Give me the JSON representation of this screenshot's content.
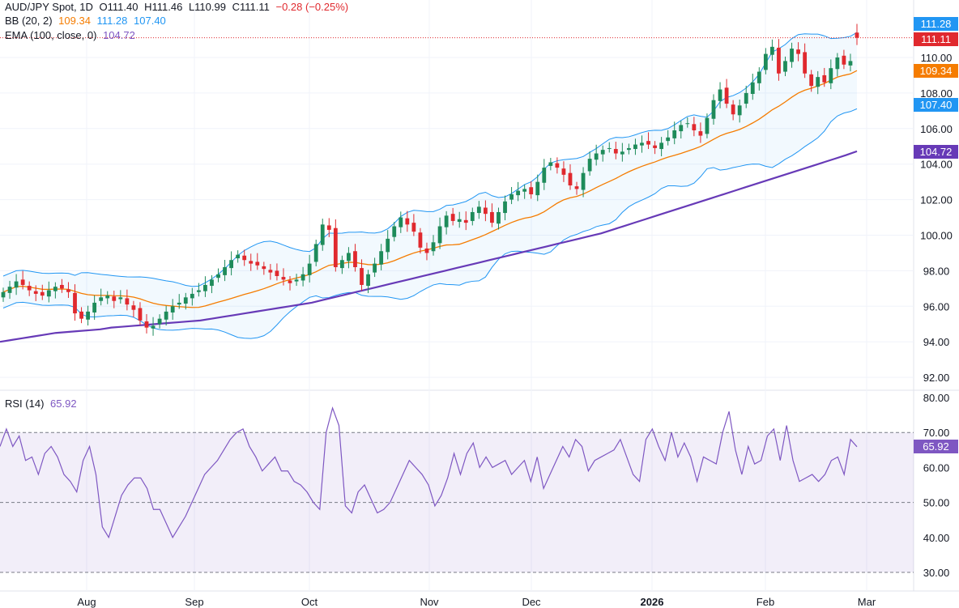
{
  "header": {
    "symbol": "AUD/JPY Spot, 1D",
    "open": "O111.40",
    "high": "H111.46",
    "low": "L110.99",
    "close": "C111.11",
    "change": "−0.28 (−0.25%)",
    "bb_label": "BB (20, 2)",
    "bb_mid": "109.34",
    "bb_up": "111.28",
    "bb_low": "107.40",
    "ema_label": "EMA (100, close, 0)",
    "ema_val": "104.72",
    "rsi_label": "RSI (14)",
    "rsi_val": "65.92"
  },
  "price_tags": {
    "bb_upper": "111.28",
    "last": "111.11",
    "bb_mid": "109.34",
    "bb_lower": "107.40",
    "ema": "104.72",
    "rsi": "65.92"
  },
  "colors": {
    "up": "#26a69a",
    "down": "#ef5350",
    "bb_mid": "#f57c00",
    "bb_band": "#2196f3",
    "ema": "#673ab7",
    "rsi": "#7e57c2"
  },
  "chart_data": [
    {
      "type": "candlestick",
      "title": "AUD/JPY Spot, 1D",
      "y_ticks": [
        "110.00",
        "108.00",
        "106.00",
        "104.00",
        "102.00",
        "100.00",
        "98.00",
        "96.00",
        "94.00",
        "92.00"
      ],
      "ylim": [
        91.2,
        113.0
      ],
      "x_ticks": [
        "Aug",
        "Sep",
        "Oct",
        "Nov",
        "Dec",
        "2026",
        "Feb",
        "Mar"
      ],
      "close": [
        96.8,
        97.1,
        97.4,
        97.2,
        96.9,
        96.7,
        96.6,
        96.9,
        97.1,
        97.0,
        96.8,
        95.6,
        95.3,
        95.7,
        96.2,
        96.5,
        96.6,
        96.3,
        96.5,
        96.1,
        95.8,
        95.2,
        94.8,
        94.9,
        95.3,
        95.7,
        96.0,
        96.2,
        96.5,
        96.7,
        96.9,
        97.2,
        97.5,
        97.8,
        98.2,
        98.6,
        98.9,
        98.6,
        98.4,
        98.3,
        98.1,
        97.9,
        97.7,
        97.5,
        97.3,
        97.5,
        97.8,
        98.4,
        99.5,
        100.6,
        100.3,
        98.2,
        98.6,
        99.0,
        98.2,
        97.2,
        97.8,
        98.4,
        99.1,
        99.8,
        100.5,
        101.0,
        100.6,
        100.2,
        99.3,
        99.0,
        99.6,
        100.5,
        101.1,
        100.8,
        100.9,
        100.7,
        101.3,
        101.6,
        101.2,
        100.7,
        101.3,
        101.9,
        102.3,
        102.5,
        102.6,
        102.3,
        103.0,
        103.8,
        104.1,
        103.8,
        103.4,
        102.8,
        102.6,
        103.5,
        104.3,
        104.6,
        104.8,
        104.9,
        104.6,
        104.7,
        104.9,
        105.1,
        105.2,
        105.1,
        104.9,
        105.2,
        105.5,
        105.9,
        106.2,
        106.3,
        105.9,
        105.6,
        106.6,
        107.6,
        108.2,
        107.4,
        106.8,
        107.3,
        108.0,
        108.6,
        109.2,
        110.2,
        110.6,
        109.1,
        109.8,
        110.5,
        110.2,
        109.1,
        108.4,
        108.9,
        108.6,
        109.4,
        110.0,
        109.6,
        109.8,
        111.11
      ],
      "ema": [
        94.0,
        94.1,
        94.2,
        94.3,
        94.4,
        94.5,
        94.55,
        94.6,
        94.65,
        94.7,
        94.8,
        94.85,
        94.9,
        94.95,
        95.0,
        95.05,
        95.1,
        95.15,
        95.2,
        95.3,
        95.4,
        95.5,
        95.6,
        95.7,
        95.8,
        95.9,
        96.0,
        96.1,
        96.2,
        96.35,
        96.5,
        96.65,
        96.8,
        96.95,
        97.1,
        97.25,
        97.4,
        97.55,
        97.7,
        97.85,
        98.0,
        98.15,
        98.3,
        98.45,
        98.6,
        98.75,
        98.9,
        99.05,
        99.2,
        99.35,
        99.5,
        99.65,
        99.8,
        99.95,
        100.1,
        100.3,
        100.5,
        100.7,
        100.9,
        101.1,
        101.3,
        101.5,
        101.7,
        101.9,
        102.1,
        102.3,
        102.5,
        102.7,
        102.9,
        103.1,
        103.3,
        103.5,
        103.7,
        103.9,
        104.1,
        104.3,
        104.5,
        104.72
      ],
      "rsi": {
        "y_ticks": [
          "80.00",
          "70.00",
          "60.00",
          "50.00",
          "40.00",
          "30.00"
        ],
        "ylim": [
          28,
          82
        ],
        "levels": [
          70,
          50,
          30
        ],
        "values": [
          66,
          71,
          66,
          69,
          62,
          63,
          58,
          64,
          66,
          63,
          58,
          56,
          53,
          62,
          66,
          58,
          43,
          40,
          46,
          52,
          55,
          57,
          57,
          54,
          48,
          48,
          44,
          40,
          43,
          46,
          50,
          54,
          58,
          60,
          62,
          65,
          68,
          70,
          71,
          66,
          63,
          59,
          61,
          63,
          59,
          59,
          56,
          55,
          53,
          50,
          48,
          70,
          77,
          72,
          49,
          47,
          53,
          55,
          51,
          47,
          48,
          50,
          54,
          58,
          62,
          60,
          58,
          55,
          49,
          52,
          57,
          64,
          58,
          64,
          67,
          60,
          63,
          60,
          61,
          62,
          58,
          60,
          62,
          56,
          63,
          54,
          58,
          62,
          66,
          63,
          68,
          66,
          59,
          62,
          63,
          64,
          65,
          68,
          63,
          58,
          56,
          68,
          71,
          66,
          62,
          70,
          63,
          67,
          63,
          56,
          63,
          62,
          61,
          70,
          76,
          65,
          58,
          66,
          61,
          62,
          69,
          71,
          62,
          72,
          62,
          56,
          57,
          58,
          56,
          58,
          62,
          63,
          58,
          68,
          65.92
        ]
      }
    }
  ]
}
